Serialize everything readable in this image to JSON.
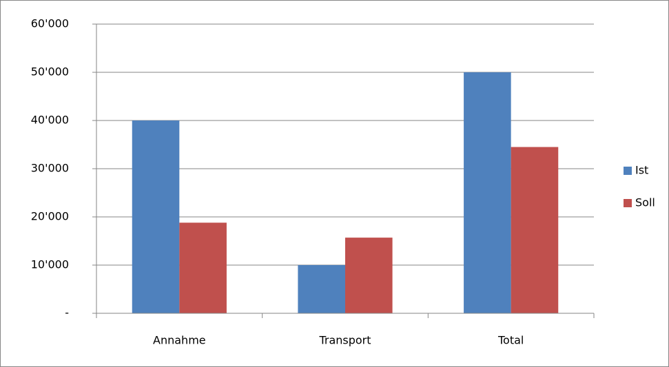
{
  "chart_data": {
    "type": "bar",
    "categories": [
      "Annahme",
      "Transport",
      "Total"
    ],
    "series": [
      {
        "name": "Ist",
        "color": "#4f81bd",
        "values": [
          40000,
          10000,
          50000
        ]
      },
      {
        "name": "Soll",
        "color": "#c0504d",
        "values": [
          18800,
          15700,
          34500
        ]
      }
    ],
    "ylim": [
      0,
      60000
    ],
    "yticks": [
      {
        "value": 0,
        "label": "-"
      },
      {
        "value": 10000,
        "label": "10'000"
      },
      {
        "value": 20000,
        "label": "20'000"
      },
      {
        "value": 30000,
        "label": "30'000"
      },
      {
        "value": 40000,
        "label": "40'000"
      },
      {
        "value": 50000,
        "label": "50'000"
      },
      {
        "value": 60000,
        "label": "60'000"
      }
    ],
    "grid": true,
    "legend": "right"
  }
}
